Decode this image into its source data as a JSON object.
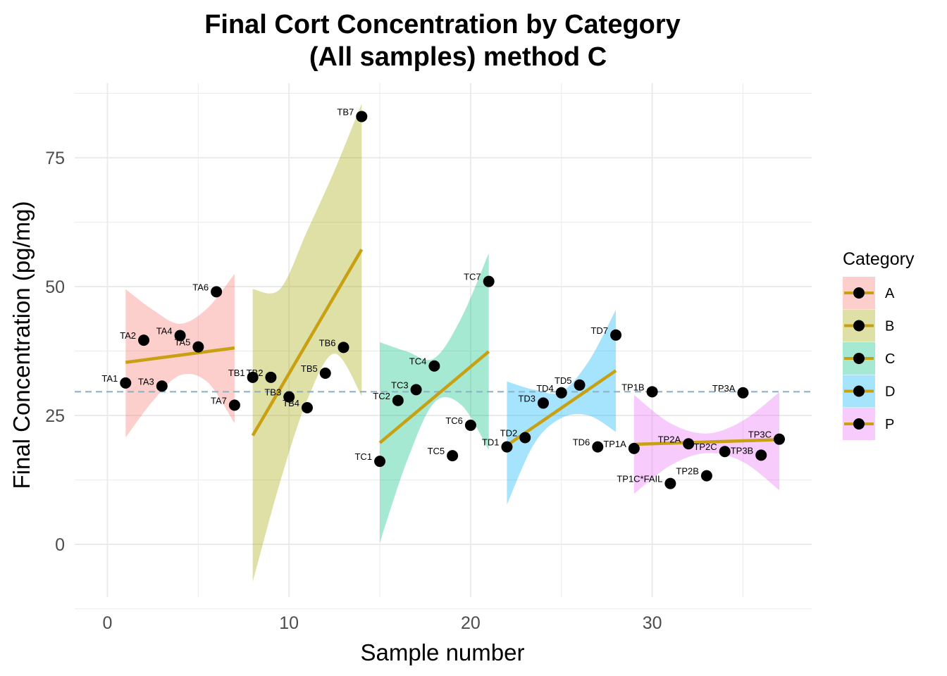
{
  "chart_data": {
    "type": "scatter",
    "title_line1": "Final Cort Concentration by Category",
    "title_line2": "(All samples) method C",
    "xlabel": "Sample number",
    "ylabel": "Final Concentration (pg/mg)",
    "xlim": [
      -1.8,
      38.5
    ],
    "ylim": [
      -12.5,
      88
    ],
    "x_ticks": [
      0,
      10,
      20,
      30
    ],
    "y_ticks": [
      0,
      25,
      50,
      75
    ],
    "grid": true,
    "reference_line": {
      "y": 29.6,
      "style": "dashed",
      "color": "#8db3c8"
    },
    "legend": {
      "title": "Category",
      "placement": "right",
      "entries": [
        "A",
        "B",
        "C",
        "D",
        "P"
      ]
    },
    "trend_color": "#c9a011",
    "point_color": "#000000",
    "series": [
      {
        "name": "A",
        "color": "#f8766d",
        "trend": {
          "x": [
            1,
            7
          ],
          "y": [
            35.3,
            38.1
          ]
        },
        "band": {
          "x": [
            1,
            2.5,
            4,
            5.5,
            7
          ],
          "upper": [
            49.5,
            45.5,
            42.8,
            45.8,
            52.5
          ],
          "lower": [
            20.7,
            27.8,
            32.8,
            31.5,
            23.5
          ]
        },
        "points": [
          {
            "label": "TA1",
            "x": 1,
            "y": 31.3
          },
          {
            "label": "TA2",
            "x": 2,
            "y": 39.6
          },
          {
            "label": "TA3",
            "x": 3,
            "y": 30.7
          },
          {
            "label": "TA4",
            "x": 4,
            "y": 40.5
          },
          {
            "label": "TA5",
            "x": 5,
            "y": 38.3
          },
          {
            "label": "TA6",
            "x": 6,
            "y": 49.0
          },
          {
            "label": "TA7",
            "x": 7,
            "y": 27.0
          }
        ]
      },
      {
        "name": "B",
        "color": "#a3a500",
        "trend": {
          "x": [
            8,
            14
          ],
          "y": [
            21.1,
            57.2
          ]
        },
        "band": {
          "x": [
            8,
            9.5,
            11,
            12.5,
            14
          ],
          "upper": [
            49.5,
            49.5,
            60.8,
            72.5,
            85.5
          ],
          "lower": [
            -7.3,
            12.0,
            28.0,
            37.0,
            28.8
          ]
        },
        "points": [
          {
            "label": "TB1",
            "x": 8,
            "y": 32.4
          },
          {
            "label": "TB2",
            "x": 9,
            "y": 32.4
          },
          {
            "label": "TB3",
            "x": 10,
            "y": 28.6
          },
          {
            "label": "TB4",
            "x": 11,
            "y": 26.5
          },
          {
            "label": "TB5",
            "x": 12,
            "y": 33.2
          },
          {
            "label": "TB6",
            "x": 13,
            "y": 38.2
          },
          {
            "label": "TB7",
            "x": 14,
            "y": 83.0
          }
        ]
      },
      {
        "name": "C",
        "color": "#00bf7d",
        "trend": {
          "x": [
            15,
            21
          ],
          "y": [
            19.7,
            37.4
          ]
        },
        "band": {
          "x": [
            15,
            16.5,
            18,
            19.5,
            21
          ],
          "upper": [
            39.2,
            37.4,
            36.1,
            44.0,
            56.5
          ],
          "lower": [
            0.3,
            16.2,
            27.5,
            27.0,
            18.3
          ]
        },
        "points": [
          {
            "label": "TC1",
            "x": 15,
            "y": 16.1
          },
          {
            "label": "TC2",
            "x": 16,
            "y": 27.9
          },
          {
            "label": "TC3",
            "x": 17,
            "y": 30.0
          },
          {
            "label": "TC4",
            "x": 18,
            "y": 34.6
          },
          {
            "label": "TC5",
            "x": 19,
            "y": 17.2
          },
          {
            "label": "TC6",
            "x": 20,
            "y": 23.1
          },
          {
            "label": "TC7",
            "x": 21,
            "y": 51.0
          }
        ]
      },
      {
        "name": "D",
        "color": "#00b0f6",
        "trend": {
          "x": [
            22,
            28
          ],
          "y": [
            19.2,
            33.7
          ]
        },
        "band": {
          "x": [
            22,
            23.5,
            25,
            26.5,
            28
          ],
          "upper": [
            31.6,
            30.0,
            29.6,
            35.5,
            45.5
          ],
          "lower": [
            7.7,
            19.5,
            24.5,
            25.0,
            21.8
          ]
        },
        "points": [
          {
            "label": "TD1",
            "x": 22,
            "y": 18.9
          },
          {
            "label": "TD2",
            "x": 23,
            "y": 20.7
          },
          {
            "label": "TD3",
            "x": 24,
            "y": 27.4
          },
          {
            "label": "TD4",
            "x": 25,
            "y": 29.4
          },
          {
            "label": "TD5",
            "x": 26,
            "y": 30.9
          },
          {
            "label": "TD6",
            "x": 27,
            "y": 18.9
          },
          {
            "label": "TD7",
            "x": 28,
            "y": 40.6
          }
        ]
      },
      {
        "name": "P",
        "color": "#e76bf3",
        "trend": {
          "x": [
            29,
            37
          ],
          "y": [
            19.4,
            20.3
          ]
        },
        "band": {
          "x": [
            29,
            31,
            33,
            35,
            37
          ],
          "upper": [
            29.0,
            23.5,
            21.5,
            24.0,
            29.5
          ],
          "lower": [
            9.8,
            15.3,
            17.7,
            16.0,
            10.5
          ]
        },
        "points": [
          {
            "label": "TP1A",
            "x": 29,
            "y": 18.6
          },
          {
            "label": "TP1B",
            "x": 30,
            "y": 29.6
          },
          {
            "label": "TP1C*FAIL",
            "x": 31,
            "y": 11.8
          },
          {
            "label": "TP2A",
            "x": 32,
            "y": 19.5
          },
          {
            "label": "TP2B",
            "x": 33,
            "y": 13.3
          },
          {
            "label": "TP2C",
            "x": 34,
            "y": 18.0
          },
          {
            "label": "TP3A",
            "x": 35,
            "y": 29.4
          },
          {
            "label": "TP3B",
            "x": 36,
            "y": 17.3
          },
          {
            "label": "TP3C",
            "x": 37,
            "y": 20.4
          }
        ]
      }
    ]
  }
}
